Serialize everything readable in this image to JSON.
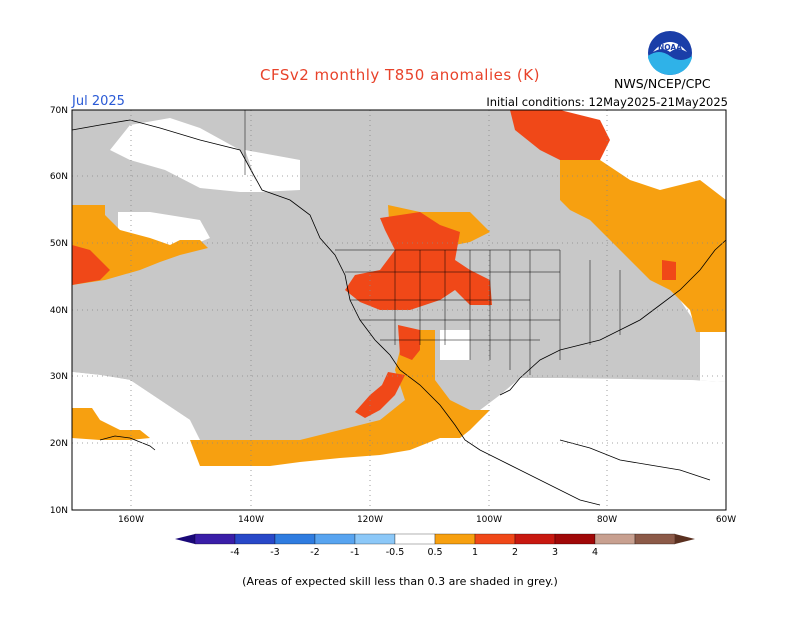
{
  "header": {
    "title": "CFSv2 monthly T850 anomalies (K)",
    "period": "Jul 2025",
    "initial_conditions": "Initial conditions: 12May2025-21May2025",
    "agency": "NWS/NCEP/CPC",
    "logo_text": "NOAA"
  },
  "map": {
    "lat_labels": [
      "70N",
      "60N",
      "50N",
      "40N",
      "30N",
      "20N",
      "10N"
    ],
    "lon_labels": [
      "160W",
      "140W",
      "120W",
      "100W",
      "80W",
      "60W"
    ],
    "colors": {
      "grey": "#c8c8c8",
      "light_orange": "#f7a010",
      "orange_red": "#f04818",
      "border": "#000000"
    }
  },
  "colorbar": {
    "tick_labels": [
      "-4",
      "-3",
      "-2",
      "-1",
      "-0.5",
      "0.5",
      "1",
      "2",
      "3",
      "4"
    ],
    "colors": [
      "#3a1ea8",
      "#2848c8",
      "#2f7ce0",
      "#58a4f0",
      "#8cc8f8",
      "#ffffff",
      "#f7a010",
      "#f04818",
      "#c81810",
      "#a00808",
      "#c8a090",
      "#8c5a48"
    ]
  },
  "footnote": "(Areas of expected skill less than 0.3 are shaded in grey.)"
}
